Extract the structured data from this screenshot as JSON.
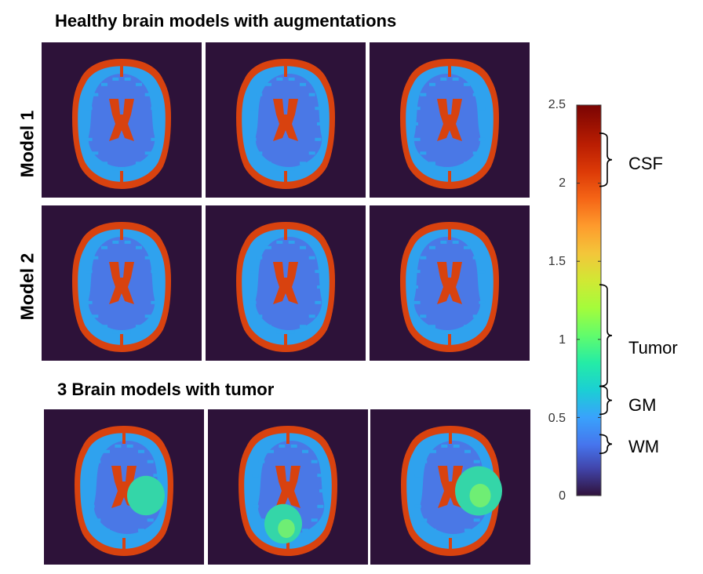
{
  "figure": {
    "healthy_title": "Healthy brain models with augmentations",
    "tumor_title": "3 Brain models with tumor",
    "rows": [
      {
        "label": "Model 1"
      },
      {
        "label": "Model 2"
      }
    ],
    "panels": {
      "healthy": [
        {
          "name": "model-1-aug-1",
          "variant": 0
        },
        {
          "name": "model-1-aug-2",
          "variant": 1
        },
        {
          "name": "model-1-aug-3",
          "variant": 2
        },
        {
          "name": "model-2-aug-1",
          "variant": 0
        },
        {
          "name": "model-2-aug-2",
          "variant": 1
        },
        {
          "name": "model-2-aug-3",
          "variant": 2
        }
      ],
      "tumor": [
        {
          "name": "tumor-model-1",
          "tumor": "right-center"
        },
        {
          "name": "tumor-model-2",
          "tumor": "bottom-center"
        },
        {
          "name": "tumor-model-3",
          "tumor": "right-large"
        }
      ]
    }
  },
  "colorbar": {
    "min": 0,
    "max": 2.5,
    "ticks": [
      "2.5",
      "2",
      "1.5",
      "1",
      "0.5",
      "0"
    ],
    "tick_values": [
      2.5,
      2,
      1.5,
      1,
      0.5,
      0
    ],
    "colormap": "turbo",
    "regions": [
      {
        "label": "CSF",
        "range": [
          1.98,
          2.32
        ]
      },
      {
        "label": "Tumor",
        "range": [
          0.7,
          1.35
        ]
      },
      {
        "label": "GM",
        "range": [
          0.52,
          0.7
        ]
      },
      {
        "label": "WM",
        "range": [
          0.27,
          0.39
        ]
      }
    ]
  },
  "colors": {
    "background": "#2d1239",
    "csf": "#d8420f",
    "wm": "#4a78e6",
    "gm": "#2fa2ee",
    "tumor": "#34d6a8",
    "tumor_core": "#6fee74"
  }
}
